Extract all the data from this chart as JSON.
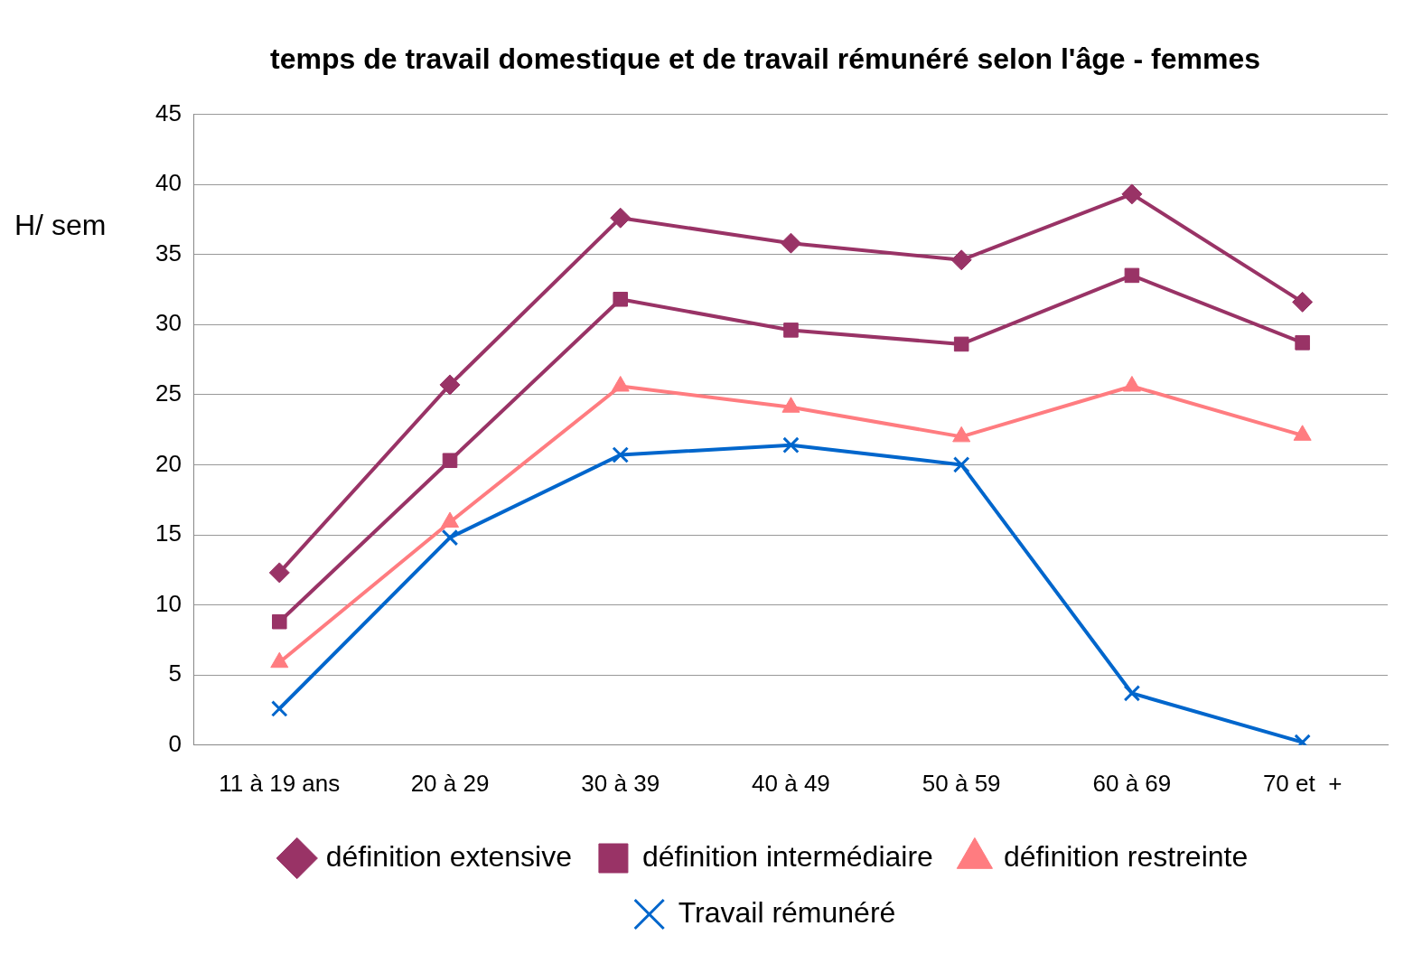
{
  "chart_data": {
    "type": "line",
    "title": "temps de travail domestique et de travail rémunéré selon l'âge - femmes",
    "ylabel": "H/ sem",
    "categories": [
      "11 à 19 ans",
      "20 à 29",
      "30 à 39",
      "40 à 49",
      "50 à 59",
      "60 à 69",
      "70 et  +"
    ],
    "series": [
      {
        "name": "définition extensive",
        "color": "#993366",
        "marker": "diamond",
        "values": [
          12.3,
          25.7,
          37.6,
          35.8,
          34.6,
          39.3,
          31.6
        ]
      },
      {
        "name": "définition intermédiaire",
        "color": "#993366",
        "marker": "square",
        "values": [
          8.8,
          20.3,
          31.8,
          29.6,
          28.6,
          33.5,
          28.7
        ]
      },
      {
        "name": "définition restreinte",
        "color": "#ff7c80",
        "marker": "triangle",
        "values": [
          5.9,
          15.9,
          25.6,
          24.1,
          22.0,
          25.6,
          22.1
        ]
      },
      {
        "name": "Travail rémunéré",
        "color": "#0066cc",
        "marker": "cross",
        "values": [
          2.6,
          14.8,
          20.7,
          21.4,
          20.0,
          3.7,
          0.2
        ]
      }
    ],
    "ylim": [
      0,
      45
    ],
    "yticks": [
      0,
      5,
      10,
      15,
      20,
      25,
      30,
      35,
      40,
      45
    ],
    "grid": "y",
    "legend": "bottom",
    "line_style": "solid"
  }
}
